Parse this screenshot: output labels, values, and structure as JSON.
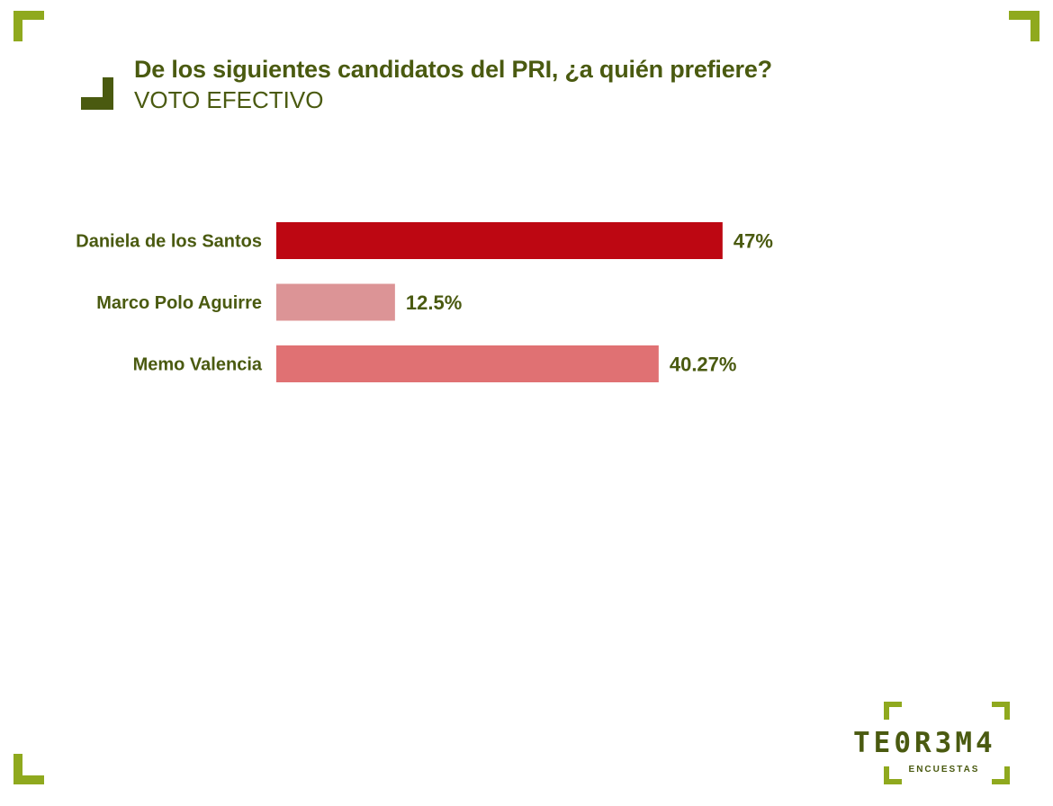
{
  "header": {
    "title": "De los siguientes candidatos del PRI, ¿a quién prefiere?",
    "subtitle": "VOTO EFECTIVO"
  },
  "logo": {
    "name": "TE0R3M4",
    "tagline": "ENCUESTAS"
  },
  "colors": {
    "accent": "#8fa91e",
    "text": "#4a5a10"
  },
  "chart_data": {
    "type": "bar",
    "orientation": "horizontal",
    "categories": [
      "Daniela de los Santos",
      "Marco Polo Aguirre",
      "Memo Valencia"
    ],
    "values": [
      47,
      12.5,
      40.27
    ],
    "value_labels": [
      "47%",
      "12.5%",
      "40.27%"
    ],
    "bar_colors": [
      "#bd0712",
      "#dc9496",
      "#e07173"
    ],
    "xlim": [
      0,
      100
    ],
    "grid": false,
    "legend": false
  }
}
